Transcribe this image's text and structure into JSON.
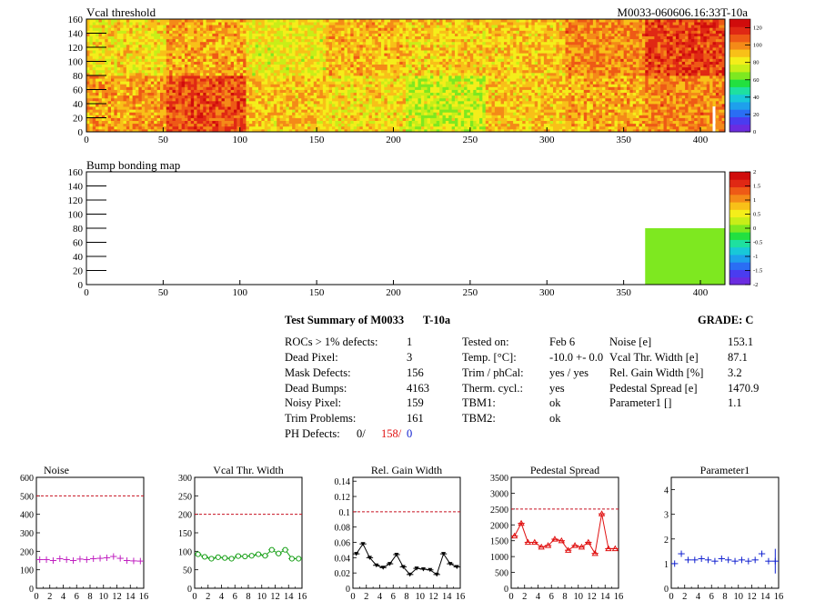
{
  "header": {
    "left_title": "Vcal threshold",
    "right_title": "M0033-060606.16:33T-10a"
  },
  "chart_data": [
    {
      "id": "vcal",
      "type": "heatmap",
      "title": "Vcal threshold",
      "xlim": [
        0,
        416
      ],
      "ylim": [
        0,
        160
      ],
      "x_ticks": [
        "0",
        "50",
        "100",
        "150",
        "200",
        "250",
        "300",
        "350",
        "400"
      ],
      "y_ticks": [
        "0",
        "20",
        "40",
        "60",
        "80",
        "100",
        "120",
        "140",
        "160"
      ],
      "zlim": [
        0,
        130
      ],
      "z_ticks": [
        "0",
        "20",
        "40",
        "60",
        "80",
        "100",
        "120"
      ],
      "roc_means": {
        "top": [
          85,
          95,
          82,
          92,
          88,
          90,
          100,
          112,
          68
        ],
        "bottom": [
          96,
          110,
          90,
          85,
          75,
          90,
          95,
          100,
          68
        ]
      },
      "dead_column": {
        "x": 408,
        "y_range": [
          0,
          36
        ]
      }
    },
    {
      "id": "bump",
      "type": "heatmap",
      "title": "Bump bonding map",
      "xlim": [
        0,
        416
      ],
      "ylim": [
        0,
        160
      ],
      "x_ticks": [
        "0",
        "50",
        "100",
        "150",
        "200",
        "250",
        "300",
        "350",
        "400"
      ],
      "y_ticks": [
        "0",
        "20",
        "40",
        "60",
        "80",
        "100",
        "120",
        "140",
        "160"
      ],
      "zlim": [
        -2,
        2
      ],
      "z_ticks": [
        "-2",
        "-1.5",
        "-1",
        "-0.5",
        "0",
        "0.5",
        "1",
        "1.5",
        "2"
      ],
      "cells": [
        {
          "x0": 364,
          "x1": 416,
          "y0": 0,
          "y1": 80,
          "z": 0
        }
      ]
    },
    {
      "id": "noise",
      "type": "scatter",
      "title": "Noise",
      "xlim": [
        0,
        16
      ],
      "ylim": [
        0,
        600
      ],
      "x_ticks": [
        "0",
        "2",
        "4",
        "6",
        "8",
        "10",
        "12",
        "14",
        "16"
      ],
      "y_ticks": [
        "0",
        "100",
        "200",
        "300",
        "400",
        "500",
        "600"
      ],
      "y_tick_values": [
        0,
        100,
        200,
        300,
        400,
        500,
        600
      ],
      "threshold": 500,
      "x": [
        0,
        1,
        2,
        3,
        4,
        5,
        6,
        7,
        8,
        9,
        10,
        11,
        12,
        13,
        14,
        15
      ],
      "values": [
        155,
        155,
        150,
        160,
        155,
        150,
        158,
        155,
        160,
        162,
        165,
        172,
        162,
        150,
        148,
        147
      ],
      "color": "#c020c0",
      "marker": "cross",
      "connect": false
    },
    {
      "id": "vcalwidth",
      "type": "line",
      "title": "Vcal Thr. Width",
      "xlim": [
        0,
        16
      ],
      "ylim": [
        0,
        300
      ],
      "x_ticks": [
        "0",
        "2",
        "4",
        "6",
        "8",
        "10",
        "12",
        "14",
        "16"
      ],
      "y_ticks": [
        "0",
        "50",
        "100",
        "150",
        "200",
        "250",
        "300"
      ],
      "y_tick_values": [
        0,
        50,
        100,
        150,
        200,
        250,
        300
      ],
      "threshold": 200,
      "x": [
        0,
        1,
        2,
        3,
        4,
        5,
        6,
        7,
        8,
        9,
        10,
        11,
        12,
        13,
        14,
        15
      ],
      "values": [
        92,
        85,
        80,
        84,
        82,
        80,
        87,
        86,
        88,
        92,
        88,
        104,
        94,
        104,
        80,
        80
      ],
      "color": "#18a018",
      "marker": "circle",
      "connect": true
    },
    {
      "id": "gain",
      "type": "line",
      "title": "Rel. Gain Width",
      "xlim": [
        0,
        16
      ],
      "ylim": [
        0,
        0.145
      ],
      "x_ticks": [
        "0",
        "2",
        "4",
        "6",
        "8",
        "10",
        "12",
        "14",
        "16"
      ],
      "y_ticks": [
        "0",
        "0.02",
        "0.04",
        "0.06",
        "0.08",
        "0.1",
        "0.12",
        "0.14"
      ],
      "y_tick_values": [
        0,
        0.02,
        0.04,
        0.06,
        0.08,
        0.1,
        0.12,
        0.14
      ],
      "threshold": 0.1,
      "x": [
        0,
        1,
        2,
        3,
        4,
        5,
        6,
        7,
        8,
        9,
        10,
        11,
        12,
        13,
        14,
        15
      ],
      "values": [
        0.045,
        0.058,
        0.04,
        0.03,
        0.027,
        0.032,
        0.044,
        0.028,
        0.018,
        0.026,
        0.025,
        0.024,
        0.018,
        0.045,
        0.032,
        0.028
      ],
      "color": "#000000",
      "marker": "triangle-down",
      "connect": true
    },
    {
      "id": "pedestal",
      "type": "line",
      "title": "Pedestal Spread",
      "xlim": [
        0,
        16
      ],
      "ylim": [
        0,
        3500
      ],
      "x_ticks": [
        "0",
        "2",
        "4",
        "6",
        "8",
        "10",
        "12",
        "14",
        "16"
      ],
      "y_ticks": [
        "0",
        "500",
        "1000",
        "1500",
        "2000",
        "2500",
        "3000",
        "3500"
      ],
      "y_tick_values": [
        0,
        500,
        1000,
        1500,
        2000,
        2500,
        3000,
        3500
      ],
      "threshold": 2500,
      "x": [
        0,
        1,
        2,
        3,
        4,
        5,
        6,
        7,
        8,
        9,
        10,
        11,
        12,
        13,
        14,
        15
      ],
      "values": [
        1650,
        2050,
        1450,
        1450,
        1300,
        1350,
        1550,
        1500,
        1200,
        1350,
        1300,
        1450,
        1100,
        2350,
        1250,
        1250
      ],
      "color": "#e01010",
      "marker": "triangle-up",
      "connect": true
    },
    {
      "id": "param1",
      "type": "scatter",
      "title": "Parameter1",
      "xlim": [
        0,
        16
      ],
      "ylim": [
        0,
        4.5
      ],
      "x_ticks": [
        "0",
        "2",
        "4",
        "6",
        "8",
        "10",
        "12",
        "14",
        "16"
      ],
      "y_ticks": [
        "0",
        "1",
        "2",
        "3",
        "4"
      ],
      "y_tick_values": [
        0,
        1,
        2,
        3,
        4
      ],
      "x": [
        0,
        1,
        2,
        3,
        4,
        5,
        6,
        7,
        8,
        9,
        10,
        11,
        12,
        13,
        14,
        15
      ],
      "values": [
        1.0,
        1.4,
        1.15,
        1.15,
        1.2,
        1.15,
        1.1,
        1.2,
        1.15,
        1.1,
        1.15,
        1.1,
        1.15,
        1.4,
        1.1,
        1.1
      ],
      "color": "#1020d0",
      "marker": "cross",
      "connect": false
    }
  ],
  "summary": {
    "title": "Test Summary of M0033",
    "temp_label": "T-10a",
    "grade": "GRADE:  C",
    "col1": [
      {
        "label": "ROCs > 1% defects:",
        "value": "1"
      },
      {
        "label": "Dead Pixel:",
        "value": "3"
      },
      {
        "label": "Mask Defects:",
        "value": "156"
      },
      {
        "label": "Dead Bumps:",
        "value": "4163"
      },
      {
        "label": "Noisy Pixel:",
        "value": "159"
      },
      {
        "label": "Trim Problems:",
        "value": "161"
      }
    ],
    "ph_defects": {
      "label": "PH Defects:",
      "v1": "0/",
      "v2": "158/",
      "v3": "0"
    },
    "col2": [
      {
        "label": "Tested on:",
        "value": "Feb 6"
      },
      {
        "label": "Temp. [°C]:",
        "value": "-10.0 +- 0.0"
      },
      {
        "label": "Trim / phCal:",
        "value": "yes / yes"
      },
      {
        "label": "Therm. cycl.:",
        "value": "yes"
      },
      {
        "label": "TBM1:",
        "value": "ok"
      },
      {
        "label": "TBM2:",
        "value": "ok"
      }
    ],
    "col3": [
      {
        "label": "Noise [e]",
        "value": "153.1"
      },
      {
        "label": "Vcal Thr. Width [e]",
        "value": "87.1"
      },
      {
        "label": "Rel. Gain Width [%]",
        "value": "3.2"
      },
      {
        "label": "Pedestal Spread [e]",
        "value": "1470.9"
      },
      {
        "label": "Parameter1 []",
        "value": "1.1"
      }
    ]
  },
  "colors": {
    "palette": [
      "#6b2ce0",
      "#4a3cf0",
      "#2a6ef4",
      "#1ea0ec",
      "#18c8d8",
      "#1ee0a0",
      "#22e040",
      "#7ee820",
      "#c8ee18",
      "#f4ee1a",
      "#f8c018",
      "#f48a18",
      "#ee5a16",
      "#e02814",
      "#d00c0c"
    ],
    "threshold": "#c81020"
  }
}
